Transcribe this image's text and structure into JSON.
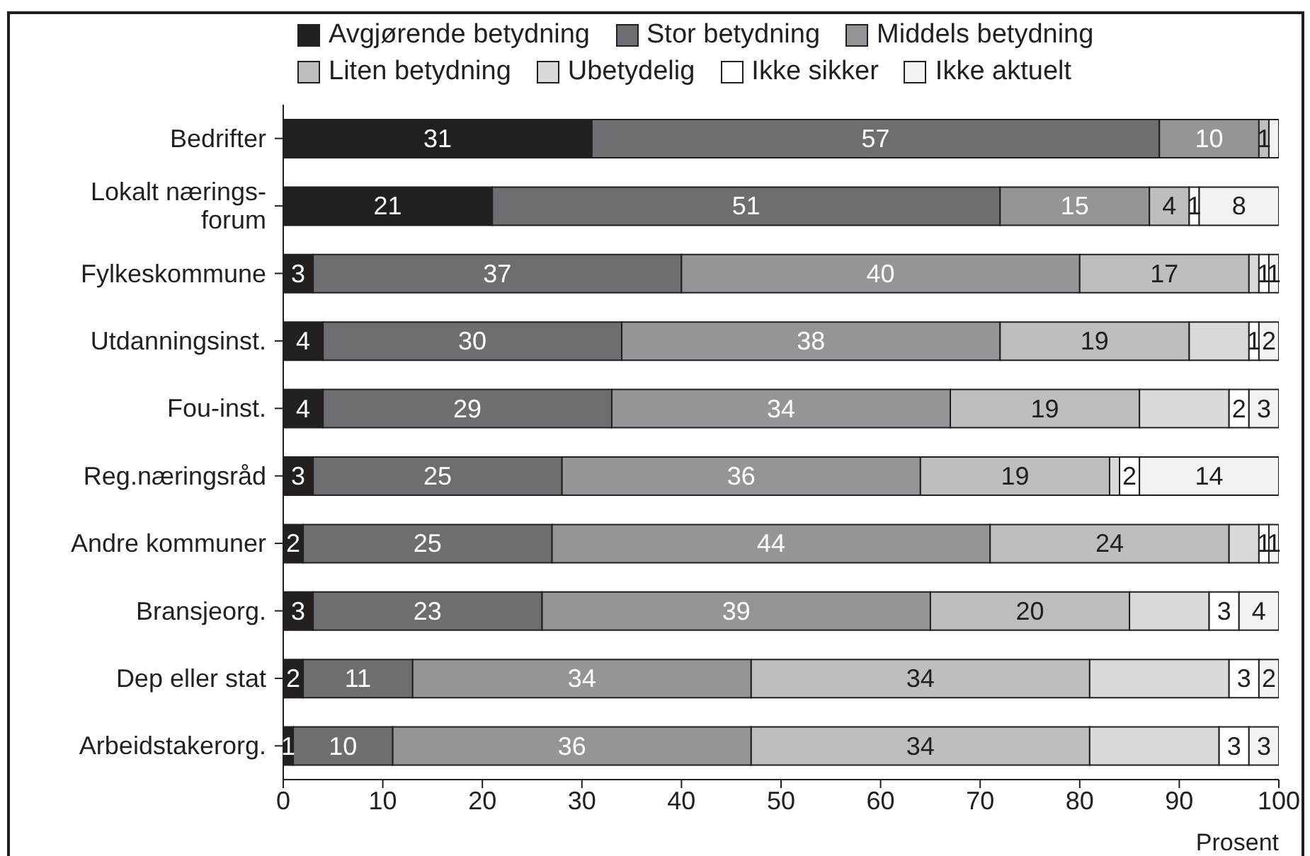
{
  "chart_data": {
    "type": "bar",
    "orientation": "horizontal",
    "stacked": true,
    "xlabel": "Prosent",
    "legend": "top",
    "grid": false,
    "categories": [
      "Bedrifter",
      "Lokalt nærings- forum",
      "Fylkeskommune",
      "Utdanningsinst.",
      "Fou-inst.",
      "Reg.næringsråd",
      "Andre kommuner",
      "Bransjeorg.",
      "Dep eller stat",
      "Arbeidstakerorg."
    ],
    "xlim": [
      0,
      100
    ],
    "xticks": [
      0,
      10,
      20,
      30,
      40,
      50,
      60,
      70,
      80,
      90,
      100
    ],
    "series": [
      {
        "name": "Avgjørende betydning",
        "color": "#231f20",
        "values": [
          31,
          21,
          3,
          4,
          4,
          3,
          2,
          3,
          2,
          1
        ],
        "value_labels": [
          "31",
          "21",
          "3",
          "4",
          "4",
          "3",
          "2",
          "3",
          "2",
          "1"
        ]
      },
      {
        "name": "Stor betydning",
        "color": "#6d6e71",
        "values": [
          57,
          51,
          37,
          30,
          29,
          25,
          25,
          23,
          11,
          10
        ],
        "value_labels": [
          "57",
          "51",
          "37",
          "30",
          "29",
          "25",
          "25",
          "23",
          "11",
          "10"
        ]
      },
      {
        "name": "Middels betydning",
        "color": "#939598",
        "values": [
          10,
          15,
          40,
          38,
          34,
          36,
          44,
          39,
          34,
          36
        ],
        "value_labels": [
          "10",
          "15",
          "40",
          "38",
          "34",
          "36",
          "44",
          "39",
          "34",
          "36"
        ]
      },
      {
        "name": "Liten betydning",
        "color": "#bcbec0",
        "values": [
          1,
          4,
          17,
          19,
          19,
          19,
          24,
          20,
          34,
          34
        ],
        "value_labels": [
          "1",
          "4",
          "17",
          "19",
          "19",
          "19",
          "24",
          "20",
          "34",
          "34"
        ]
      },
      {
        "name": "Ubetydelig",
        "color": "#d9dadb",
        "values": [
          0,
          0,
          1,
          6,
          9,
          1,
          3,
          8,
          14,
          13
        ],
        "value_labels": [
          null,
          null,
          null,
          null,
          null,
          null,
          null,
          null,
          null,
          null
        ]
      },
      {
        "name": "Ikke sikker",
        "color": "#ffffff",
        "values": [
          0,
          1,
          1,
          1,
          2,
          2,
          1,
          3,
          3,
          3
        ],
        "value_labels": [
          null,
          "1",
          "1",
          "1",
          "2",
          "2",
          "1",
          "3",
          "3",
          "3"
        ]
      },
      {
        "name": "Ikke aktuelt",
        "color": "#f1f2f2",
        "values": [
          1,
          8,
          1,
          2,
          3,
          14,
          1,
          4,
          2,
          3
        ],
        "value_labels": [
          null,
          "8",
          "1",
          "2",
          "3",
          "14",
          "1",
          "4",
          "2",
          "3"
        ]
      }
    ]
  }
}
